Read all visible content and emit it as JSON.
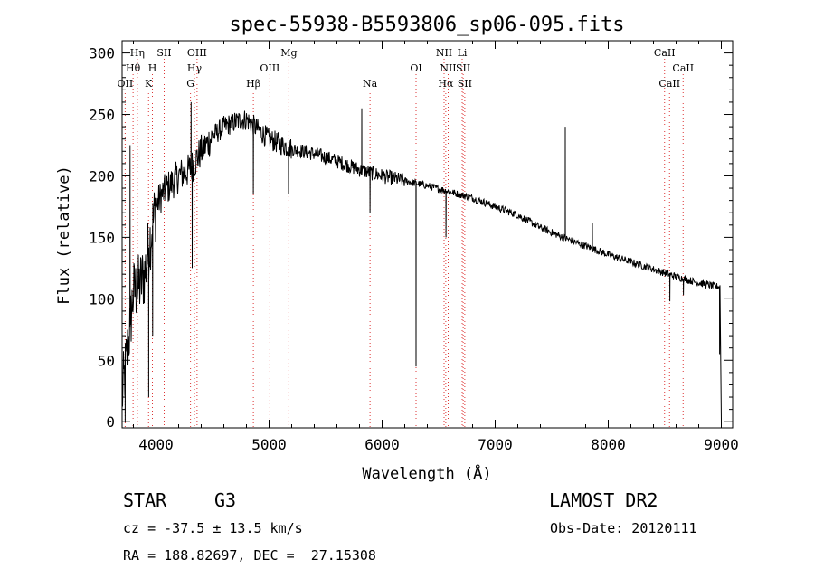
{
  "chart_data": {
    "type": "line",
    "title": "spec-55938-B5593806_sp06-095.fits",
    "xlabel": "Wavelength (Å)",
    "ylabel": "Flux (relative)",
    "xlim": [
      3700,
      9100
    ],
    "ylim": [
      -5,
      310
    ],
    "xticks": [
      4000,
      5000,
      6000,
      7000,
      8000,
      9000
    ],
    "yticks": [
      0,
      50,
      100,
      150,
      200,
      250,
      300
    ],
    "grid": false,
    "continuum": [
      {
        "x": 3700,
        "y": 20
      },
      {
        "x": 3750,
        "y": 60
      },
      {
        "x": 3800,
        "y": 105
      },
      {
        "x": 3850,
        "y": 110
      },
      {
        "x": 3900,
        "y": 120
      },
      {
        "x": 3950,
        "y": 150
      },
      {
        "x": 4000,
        "y": 175
      },
      {
        "x": 4050,
        "y": 185
      },
      {
        "x": 4100,
        "y": 190
      },
      {
        "x": 4200,
        "y": 200
      },
      {
        "x": 4300,
        "y": 205
      },
      {
        "x": 4400,
        "y": 220
      },
      {
        "x": 4500,
        "y": 232
      },
      {
        "x": 4600,
        "y": 240
      },
      {
        "x": 4700,
        "y": 244
      },
      {
        "x": 4800,
        "y": 246
      },
      {
        "x": 4900,
        "y": 238
      },
      {
        "x": 5000,
        "y": 230
      },
      {
        "x": 5200,
        "y": 222
      },
      {
        "x": 5400,
        "y": 218
      },
      {
        "x": 5600,
        "y": 212
      },
      {
        "x": 5800,
        "y": 205
      },
      {
        "x": 6000,
        "y": 200
      },
      {
        "x": 6200,
        "y": 196
      },
      {
        "x": 6400,
        "y": 192
      },
      {
        "x": 6600,
        "y": 187
      },
      {
        "x": 6800,
        "y": 182
      },
      {
        "x": 7000,
        "y": 175
      },
      {
        "x": 7200,
        "y": 168
      },
      {
        "x": 7400,
        "y": 158
      },
      {
        "x": 7600,
        "y": 150
      },
      {
        "x": 7800,
        "y": 143
      },
      {
        "x": 8000,
        "y": 136
      },
      {
        "x": 8200,
        "y": 130
      },
      {
        "x": 8400,
        "y": 124
      },
      {
        "x": 8600,
        "y": 118
      },
      {
        "x": 8800,
        "y": 113
      },
      {
        "x": 8950,
        "y": 110
      }
    ],
    "features": [
      {
        "x": 3727,
        "y": 0
      },
      {
        "x": 3770,
        "y": 225
      },
      {
        "x": 3935,
        "y": 20
      },
      {
        "x": 3970,
        "y": 70
      },
      {
        "x": 4310,
        "y": 260
      },
      {
        "x": 4320,
        "y": 125
      },
      {
        "x": 4861,
        "y": 185
      },
      {
        "x": 5172,
        "y": 185
      },
      {
        "x": 5820,
        "y": 255
      },
      {
        "x": 5893,
        "y": 170
      },
      {
        "x": 6300,
        "y": 45
      },
      {
        "x": 6565,
        "y": 150
      },
      {
        "x": 7620,
        "y": 240
      },
      {
        "x": 7860,
        "y": 162
      },
      {
        "x": 8545,
        "y": 98
      },
      {
        "x": 8665,
        "y": 103
      },
      {
        "x": 8985,
        "y": 55
      },
      {
        "x": 9000,
        "y": 0
      }
    ],
    "lines": [
      {
        "label": "OII",
        "x": 3727,
        "row": 3
      },
      {
        "label": "Hθ",
        "x": 3797,
        "row": 2
      },
      {
        "label": "Hη",
        "x": 3835,
        "row": 1
      },
      {
        "label": "K",
        "x": 3934,
        "row": 3
      },
      {
        "label": "H",
        "x": 3968,
        "row": 2
      },
      {
        "label": "SII",
        "x": 4072,
        "row": 1
      },
      {
        "label": "G",
        "x": 4305,
        "row": 3
      },
      {
        "label": "Hγ",
        "x": 4340,
        "row": 2
      },
      {
        "label": "OIII",
        "x": 4363,
        "row": 1
      },
      {
        "label": "Hβ",
        "x": 4861,
        "row": 3
      },
      {
        "label": "OIII",
        "x": 5007,
        "row": 2
      },
      {
        "label": "Mg",
        "x": 5175,
        "row": 1
      },
      {
        "label": "Na",
        "x": 5893,
        "row": 3
      },
      {
        "label": "OI",
        "x": 6300,
        "row": 2
      },
      {
        "label": "NII",
        "x": 6548,
        "row": 1
      },
      {
        "label": "Hα",
        "x": 6563,
        "row": 3
      },
      {
        "label": "NII",
        "x": 6584,
        "row": 2
      },
      {
        "label": "Li",
        "x": 6708,
        "row": 1
      },
      {
        "label": "SII",
        "x": 6717,
        "row": 2
      },
      {
        "label": "SII",
        "x": 6731,
        "row": 3
      },
      {
        "label": "CaII",
        "x": 8498,
        "row": 1
      },
      {
        "label": "CaII",
        "x": 8542,
        "row": 3
      },
      {
        "label": "CaII",
        "x": 8662,
        "row": 2
      }
    ]
  },
  "info": {
    "object_class": "STAR",
    "subclass": "G3",
    "survey": "LAMOST DR2",
    "redshift": "cz = -37.5 ± 13.5 km/s",
    "obs_date": "Obs-Date: 20120111",
    "coords": "RA = 188.82697, DEC =  27.15308"
  }
}
